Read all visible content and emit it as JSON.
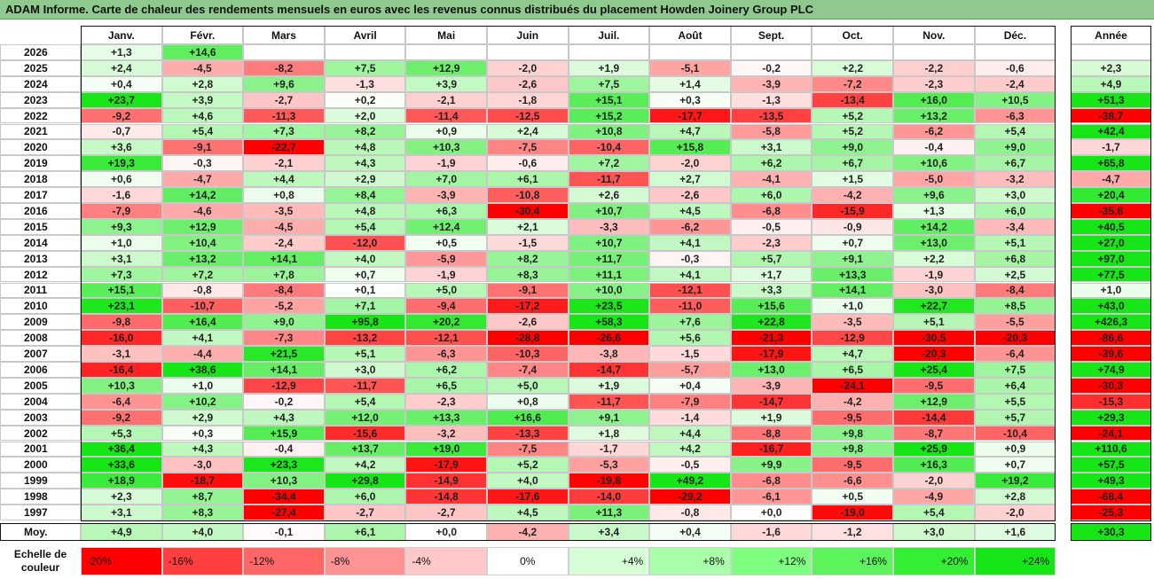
{
  "title": "ADAM Informe. Carte de chaleur des rendements mensuels en euros avec les revenus connus distribués du placement Howden Joinery Group PLC",
  "months": [
    "Janv.",
    "Févr.",
    "Mars",
    "Avril",
    "Mai",
    "Juin",
    "Juil.",
    "Août",
    "Sept.",
    "Oct.",
    "Nov.",
    "Déc."
  ],
  "annual_header": "Année",
  "avg_label": "Moy.",
  "scale_label": "Echelle de couleur",
  "chart_data": {
    "type": "heatmap",
    "title": "ADAM Informe. Carte de chaleur des rendements mensuels en euros avec les revenus connus distribués du placement Howden Joinery Group PLC",
    "columns": [
      "Janv.",
      "Févr.",
      "Mars",
      "Avril",
      "Mai",
      "Juin",
      "Juil.",
      "Août",
      "Sept.",
      "Oct.",
      "Nov.",
      "Déc."
    ],
    "rows": [
      {
        "year": "2026",
        "values": [
          "+1,3",
          "+14,6",
          "",
          "",
          "",
          "",
          "",
          "",
          "",
          "",
          "",
          ""
        ],
        "annual": ""
      },
      {
        "year": "2025",
        "values": [
          "+2,4",
          "-4,5",
          "-8,2",
          "+7,5",
          "+12,9",
          "-2,0",
          "+1,9",
          "-5,1",
          "-0,2",
          "+2,2",
          "-2,2",
          "-0,6"
        ],
        "annual": "+2,3"
      },
      {
        "year": "2024",
        "values": [
          "+0,4",
          "+2,8",
          "+9,6",
          "-1,3",
          "+3,9",
          "-2,6",
          "+7,5",
          "+1,4",
          "-3,9",
          "-7,2",
          "-2,3",
          "-2,4"
        ],
        "annual": "+4,9"
      },
      {
        "year": "2023",
        "values": [
          "+23,7",
          "+3,9",
          "-2,7",
          "+0,2",
          "-2,1",
          "-1,8",
          "+15,1",
          "+0,3",
          "-1,3",
          "-13,4",
          "+16,0",
          "+10,5"
        ],
        "annual": "+51,3"
      },
      {
        "year": "2022",
        "values": [
          "-9,2",
          "+4,6",
          "-11,3",
          "+2,0",
          "-11,4",
          "-12,5",
          "+15,2",
          "-17,7",
          "-13,5",
          "+5,2",
          "+13,2",
          "-6,3"
        ],
        "annual": "-38,7"
      },
      {
        "year": "2021",
        "values": [
          "-0,7",
          "+5,4",
          "+7,3",
          "+8,2",
          "+0,9",
          "+2,4",
          "+10,8",
          "+4,7",
          "-5,8",
          "+5,2",
          "-6,2",
          "+5,4"
        ],
        "annual": "+42,4"
      },
      {
        "year": "2020",
        "values": [
          "+3,6",
          "-9,1",
          "-22,7",
          "+4,8",
          "+10,3",
          "-7,5",
          "-10,4",
          "+15,8",
          "+3,1",
          "+9,0",
          "-0,4",
          "+9,0"
        ],
        "annual": "-1,7"
      },
      {
        "year": "2019",
        "values": [
          "+19,3",
          "-0,3",
          "-2,1",
          "+4,3",
          "-1,9",
          "-0,6",
          "+7,2",
          "-2,0",
          "+6,2",
          "+6,7",
          "+10,6",
          "+6,7"
        ],
        "annual": "+65,8"
      },
      {
        "year": "2018",
        "values": [
          "+0,6",
          "-4,7",
          "+4,4",
          "+2,9",
          "+7,0",
          "+6,1",
          "-11,7",
          "+2,7",
          "-4,1",
          "+1,5",
          "-5,0",
          "-3,2"
        ],
        "annual": "-4,7"
      },
      {
        "year": "2017",
        "values": [
          "-1,6",
          "+14,2",
          "+0,8",
          "+8,4",
          "-3,9",
          "-10,8",
          "+2,6",
          "-2,6",
          "+6,0",
          "-4,2",
          "+9,6",
          "+3,0"
        ],
        "annual": "+20,4"
      },
      {
        "year": "2016",
        "values": [
          "-7,9",
          "-4,6",
          "-3,5",
          "+4,8",
          "+6,3",
          "-30,4",
          "+10,7",
          "+4,5",
          "-6,8",
          "-15,9",
          "+1,3",
          "+6,0"
        ],
        "annual": "-35,6"
      },
      {
        "year": "2015",
        "values": [
          "+9,3",
          "+12,9",
          "-4,5",
          "+5,4",
          "+12,4",
          "+2,1",
          "-3,3",
          "-6,2",
          "-0,5",
          "-0,9",
          "+14,2",
          "-3,4"
        ],
        "annual": "+40,5"
      },
      {
        "year": "2014",
        "values": [
          "+1,0",
          "+10,4",
          "-2,4",
          "-12,0",
          "+0,5",
          "-1,5",
          "+10,7",
          "+4,1",
          "-2,3",
          "+0,7",
          "+13,0",
          "+5,1"
        ],
        "annual": "+27,0"
      },
      {
        "year": "2013",
        "values": [
          "+3,1",
          "+13,2",
          "+14,1",
          "+4,0",
          "-5,9",
          "+8,2",
          "+11,7",
          "-0,3",
          "+5,7",
          "+9,1",
          "+2,2",
          "+6,8"
        ],
        "annual": "+97,0"
      },
      {
        "year": "2012",
        "values": [
          "+7,3",
          "+7,2",
          "+7,8",
          "+0,7",
          "-1,9",
          "+8,3",
          "+11,1",
          "+4,1",
          "+1,7",
          "+13,3",
          "-1,9",
          "+2,5"
        ],
        "annual": "+77,5"
      },
      {
        "year": "2011",
        "values": [
          "+15,1",
          "-0,8",
          "-8,4",
          "+0,1",
          "+5,0",
          "-9,1",
          "+10,0",
          "-12,1",
          "+3,3",
          "+14,1",
          "-3,0",
          "-8,4"
        ],
        "annual": "+1,0"
      },
      {
        "year": "2010",
        "values": [
          "+23,1",
          "-10,7",
          "-5,2",
          "+7,1",
          "-9,4",
          "-17,2",
          "+23,5",
          "-11,0",
          "+15,6",
          "+1,0",
          "+22,7",
          "+8,5"
        ],
        "annual": "+43,0"
      },
      {
        "year": "2009",
        "values": [
          "-9,8",
          "+16,4",
          "+9,0",
          "+95,8",
          "+20,2",
          "-2,6",
          "+58,3",
          "+7,6",
          "+22,8",
          "-3,5",
          "+5,1",
          "-5,5"
        ],
        "annual": "+426,3"
      },
      {
        "year": "2008",
        "values": [
          "-16,0",
          "+4,1",
          "-7,3",
          "-13,2",
          "-12,1",
          "-28,8",
          "-26,6",
          "+5,6",
          "-21,3",
          "-12,9",
          "-30,5",
          "-20,3"
        ],
        "annual": "-86,6"
      },
      {
        "year": "2007",
        "values": [
          "-3,1",
          "-4,4",
          "+21,5",
          "+5,1",
          "-6,3",
          "-10,3",
          "-3,8",
          "-1,5",
          "-17,9",
          "+4,7",
          "-20,3",
          "-6,4"
        ],
        "annual": "-39,6"
      },
      {
        "year": "2006",
        "values": [
          "-16,4",
          "+38,6",
          "+14,1",
          "+3,0",
          "+6,2",
          "-7,4",
          "-14,7",
          "-5,7",
          "+13,0",
          "+6,5",
          "+25,4",
          "+7,5"
        ],
        "annual": "+74,9"
      },
      {
        "year": "2005",
        "values": [
          "+10,3",
          "+1,0",
          "-12,9",
          "-11,7",
          "+6,5",
          "+5,0",
          "+1,9",
          "+0,4",
          "-3,9",
          "-24,1",
          "-9,5",
          "+6,4"
        ],
        "annual": "-30,3"
      },
      {
        "year": "2004",
        "values": [
          "-6,4",
          "+10,2",
          "-0,2",
          "+5,4",
          "-2,3",
          "+0,8",
          "-11,7",
          "-7,9",
          "-14,7",
          "-4,2",
          "+12,9",
          "+5,5"
        ],
        "annual": "-15,3"
      },
      {
        "year": "2003",
        "values": [
          "-9,2",
          "+2,9",
          "+4,3",
          "+12,0",
          "+13,3",
          "+16,6",
          "+9,1",
          "-1,4",
          "+1,9",
          "-9,5",
          "-14,4",
          "+5,7"
        ],
        "annual": "+29,3"
      },
      {
        "year": "2002",
        "values": [
          "+5,3",
          "+0,3",
          "+15,9",
          "-15,6",
          "-3,2",
          "-13,3",
          "+1,8",
          "+4,4",
          "-8,8",
          "+9,8",
          "-8,7",
          "-10,4"
        ],
        "annual": "-24,1"
      },
      {
        "year": "2001",
        "values": [
          "+36,4",
          "+4,3",
          "-0,4",
          "+13,7",
          "+19,0",
          "-7,5",
          "-1,7",
          "+4,2",
          "-16,7",
          "+9,8",
          "+25,9",
          "+0,9"
        ],
        "annual": "+110,6"
      },
      {
        "year": "2000",
        "values": [
          "+33,6",
          "-3,0",
          "+23,3",
          "+4,2",
          "-17,9",
          "+5,2",
          "-5,3",
          "-0,5",
          "+9,9",
          "-9,5",
          "+16,3",
          "+0,7"
        ],
        "annual": "+57,5"
      },
      {
        "year": "1999",
        "values": [
          "+18,9",
          "-18,7",
          "+10,3",
          "+29,8",
          "-14,9",
          "+4,0",
          "-19,8",
          "+49,2",
          "-6,8",
          "-6,6",
          "-2,0",
          "+19,2"
        ],
        "annual": "+49,3"
      },
      {
        "year": "1998",
        "values": [
          "+2,3",
          "+8,7",
          "-34,4",
          "+6,0",
          "-14,8",
          "-17,6",
          "-14,0",
          "-29,2",
          "-6,1",
          "+0,5",
          "-4,9",
          "+2,8"
        ],
        "annual": "-68,4"
      },
      {
        "year": "1997",
        "values": [
          "+3,1",
          "+8,3",
          "-27,4",
          "-2,7",
          "-2,7",
          "+4,5",
          "+11,3",
          "-0,8",
          "+0,0",
          "-19,0",
          "+5,4",
          "-2,0"
        ],
        "annual": "-25,3"
      }
    ],
    "averages": [
      "+4,9",
      "+4,0",
      "-0,1",
      "+6,1",
      "+0,0",
      "-4,2",
      "+3,4",
      "+0,4",
      "-1,6",
      "-1,2",
      "+3,0",
      "+1,6"
    ],
    "average_annual": "+30,3",
    "color_scale": {
      "labels": [
        "-20%",
        "-16%",
        "-12%",
        "-8%",
        "-4%",
        "0%",
        "+4%",
        "+8%",
        "+12%",
        "+16%",
        "+20%",
        "+24%"
      ],
      "colors": [
        "#ff0000",
        "#ff3f3f",
        "#ff6767",
        "#ff9393",
        "#ffc9c9",
        "#ffffff",
        "#d7ffd7",
        "#a9ffa9",
        "#7fff7f",
        "#5cf35c",
        "#34ee34",
        "#16e616"
      ]
    }
  }
}
